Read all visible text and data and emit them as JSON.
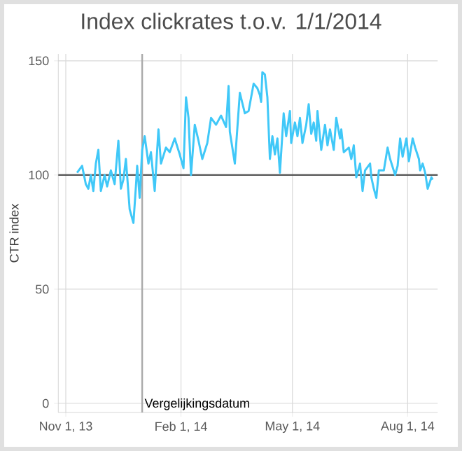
{
  "chart_data": {
    "type": "line",
    "title": "Index clickrates t.o.v. 1/1/2014",
    "ylabel": "CTR index",
    "x": [
      "2013-11-10",
      "2013-11-14",
      "2013-11-17",
      "2013-11-19",
      "2013-11-21",
      "2013-11-23",
      "2013-11-25",
      "2013-11-27",
      "2013-11-29",
      "2013-12-02",
      "2013-12-04",
      "2013-12-07",
      "2013-12-10",
      "2013-12-13",
      "2013-12-15",
      "2013-12-17",
      "2013-12-19",
      "2013-12-22",
      "2013-12-25",
      "2013-12-27",
      "2013-12-28",
      "2013-12-30",
      "2014-01-01",
      "2014-01-03",
      "2014-01-06",
      "2014-01-08",
      "2014-01-11",
      "2014-01-14",
      "2014-01-16",
      "2014-01-20",
      "2014-01-23",
      "2014-01-27",
      "2014-01-31",
      "2014-02-03",
      "2014-02-05",
      "2014-02-07",
      "2014-02-09",
      "2014-02-12",
      "2014-02-15",
      "2014-02-18",
      "2014-02-22",
      "2014-02-25",
      "2014-03-01",
      "2014-03-05",
      "2014-03-09",
      "2014-03-11",
      "2014-03-12",
      "2014-03-16",
      "2014-03-20",
      "2014-03-24",
      "2014-03-27",
      "2014-03-31",
      "2014-04-03",
      "2014-04-05",
      "2014-04-06",
      "2014-04-07",
      "2014-04-09",
      "2014-04-11",
      "2014-04-13",
      "2014-04-15",
      "2014-04-17",
      "2014-04-19",
      "2014-04-21",
      "2014-04-24",
      "2014-04-26",
      "2014-04-29",
      "2014-04-30",
      "2014-05-03",
      "2014-05-05",
      "2014-05-07",
      "2014-05-09",
      "2014-05-12",
      "2014-05-14",
      "2014-05-16",
      "2014-05-18",
      "2014-05-20",
      "2014-05-21",
      "2014-05-24",
      "2014-05-27",
      "2014-05-29",
      "2014-05-31",
      "2014-06-03",
      "2014-06-05",
      "2014-06-08",
      "2014-06-09",
      "2014-06-11",
      "2014-06-15",
      "2014-06-17",
      "2014-06-19",
      "2014-06-21",
      "2014-06-24",
      "2014-06-26",
      "2014-06-28",
      "2014-07-02",
      "2014-07-03",
      "2014-07-05",
      "2014-07-07",
      "2014-07-09",
      "2014-07-13",
      "2014-07-16",
      "2014-07-18",
      "2014-07-22",
      "2014-07-24",
      "2014-07-26",
      "2014-07-28",
      "2014-07-31",
      "2014-08-02",
      "2014-08-05",
      "2014-08-07",
      "2014-08-10",
      "2014-08-11",
      "2014-08-13",
      "2014-08-15",
      "2014-08-17",
      "2014-08-20",
      "2014-08-21"
    ],
    "series": [
      {
        "color": "#40c8f8",
        "values": [
          101,
          104,
          96,
          94,
          100,
          93,
          105,
          111,
          93,
          100,
          95,
          102,
          96,
          115,
          94,
          98,
          107,
          85,
          79,
          95,
          104,
          90,
          111,
          117,
          105,
          110,
          93,
          120,
          105,
          112,
          110,
          116,
          109,
          103,
          134,
          125,
          100,
          122,
          115,
          107,
          114,
          125,
          122,
          126,
          121,
          139,
          119,
          105,
          136,
          127,
          128,
          140,
          138,
          135,
          132,
          145,
          144,
          134,
          107,
          117,
          109,
          116,
          101,
          127,
          117,
          128,
          114,
          123,
          117,
          125,
          114,
          122,
          131,
          118,
          123,
          115,
          128,
          111,
          122,
          113,
          120,
          111,
          125,
          116,
          120,
          110,
          112,
          107,
          113,
          99,
          105,
          93,
          102,
          105,
          99,
          94,
          90,
          102,
          102,
          112,
          107,
          100,
          104,
          116,
          108,
          116,
          106,
          116,
          112,
          107,
          102,
          105,
          101,
          94,
          99,
          98
        ]
      }
    ],
    "xlim": [
      "2013-10-26",
      "2014-08-25"
    ],
    "ylim": [
      -4,
      153
    ],
    "xticks": [
      {
        "value": "2013-11-01",
        "label": "Nov 1, 13"
      },
      {
        "value": "2014-02-01",
        "label": "Feb 1, 14"
      },
      {
        "value": "2014-05-01",
        "label": "May 1, 14"
      },
      {
        "value": "2014-08-01",
        "label": "Aug 1, 14"
      }
    ],
    "yticks": [
      0,
      50,
      100,
      150
    ],
    "grid": true,
    "ref_lines": [
      {
        "axis": "y",
        "value": 100,
        "color": "#555555"
      },
      {
        "axis": "x",
        "value": "2014-01-01",
        "label": "Vergelijkingsdatum",
        "color": "#aaaaaa"
      }
    ]
  }
}
